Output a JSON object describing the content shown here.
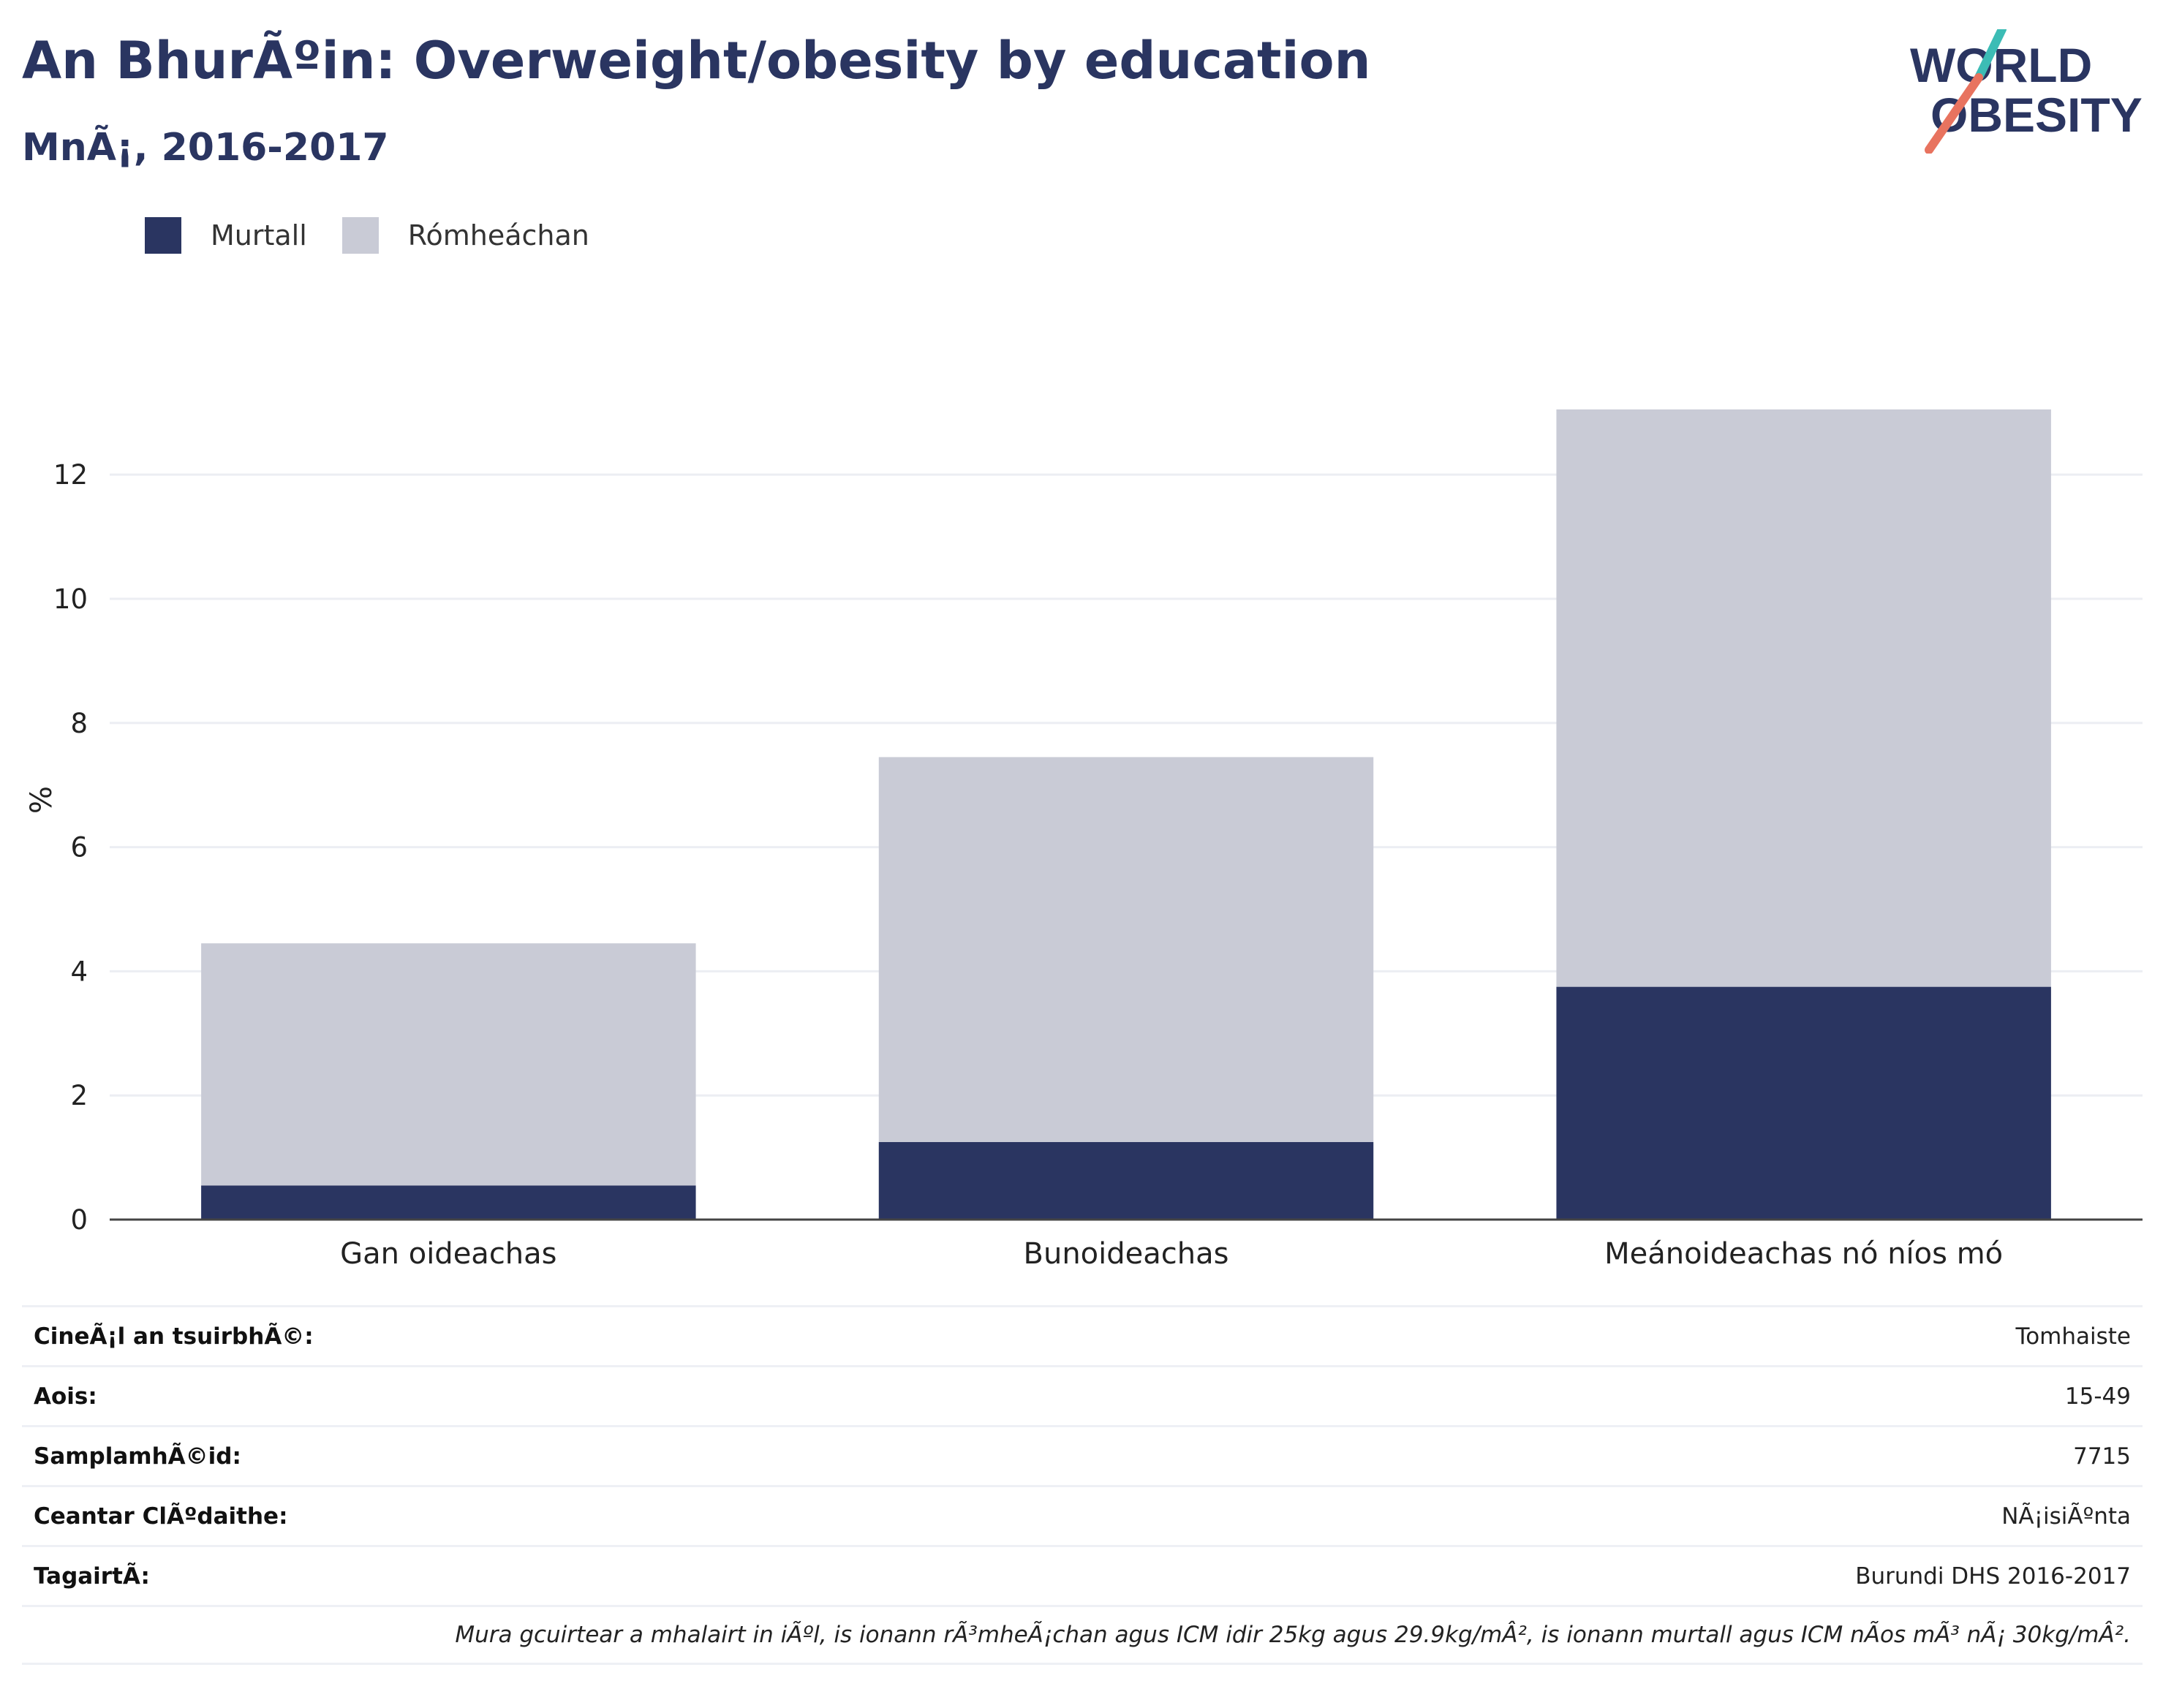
{
  "header": {
    "title": "An BhurÃºin: Overweight/obesity by education",
    "subtitle": "MnÃ¡, 2016-2017"
  },
  "logo": {
    "line1": "WORLD",
    "line2": "OBESITY"
  },
  "colors": {
    "obese": "#2a3561",
    "overweight": "#c9cbd6",
    "grid": "#eceef3",
    "axis": "#444444"
  },
  "chart_data": {
    "type": "bar",
    "stacked": true,
    "categories": [
      "Gan oideachas",
      "Bunoideachas",
      "Meánoideachas nó níos mó"
    ],
    "series": [
      {
        "name": "Murtall",
        "values": [
          0.55,
          1.25,
          3.75
        ]
      },
      {
        "name": "Rómheáchan",
        "values": [
          3.9,
          6.2,
          9.3
        ]
      }
    ],
    "totals": [
      4.45,
      7.45,
      13.05
    ],
    "ylabel": "%",
    "ylim": [
      0,
      13.05
    ],
    "yticks": [
      0,
      2,
      4,
      6,
      8,
      10,
      12
    ],
    "grid": true,
    "legend": "top-left"
  },
  "info": [
    {
      "key": "CineÃ¡l an tsuirbhÃ©:",
      "value": "Tomhaiste"
    },
    {
      "key": "Aois:",
      "value": "15-49"
    },
    {
      "key": "SamplamhÃ©id:",
      "value": "7715"
    },
    {
      "key": "Ceantar ClÃºdaithe:",
      "value": "NÃ¡isiÃºnta"
    },
    {
      "key": "TagairtÃ:",
      "value": "Burundi DHS 2016-2017"
    }
  ],
  "footnote": "Mura gcuirtear a mhalairt in iÃºl, is ionann rÃ³mheÃ¡chan agus ICM idir 25kg agus 29.9kg/mÂ², is ionann murtall agus ICM nÃos mÃ³ nÃ¡ 30kg/mÂ²."
}
